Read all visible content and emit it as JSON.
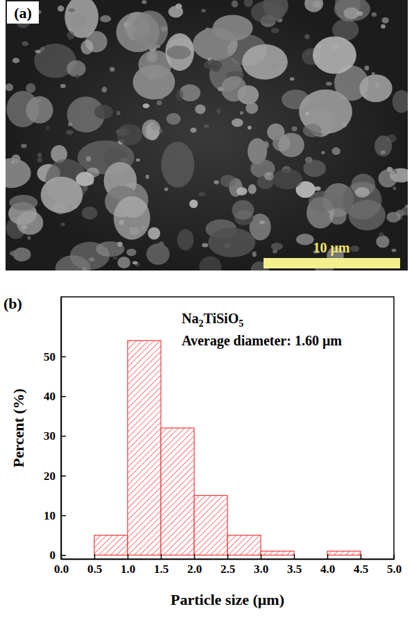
{
  "image_panel": {
    "label": "(a)",
    "scale_bar_label": "10 μm"
  },
  "chart_data": {
    "type": "histogram",
    "panel_label": "(b)",
    "x_label": "Particle size (μm)",
    "y_label": "Percent (%)",
    "annotations": [
      "Na2TiSiO5",
      "Average diameter: 1.60 μm"
    ],
    "bins": [
      0.5,
      1.0,
      1.5,
      2.0,
      2.5,
      3.0,
      3.5,
      4.0,
      4.5
    ],
    "values": [
      5,
      54,
      32,
      15,
      5,
      1,
      0,
      1
    ],
    "color": "#f03c3c",
    "xlim": [
      0,
      5
    ],
    "xticks": [
      {
        "value": 0,
        "label": "0.0"
      },
      0.5,
      {
        "value": 1,
        "label": "1.0"
      },
      1.5,
      {
        "value": 2,
        "label": "2.0"
      },
      2.5,
      {
        "value": 3,
        "label": "3.0"
      },
      3.5,
      {
        "value": 4,
        "label": "4.0"
      },
      4.5,
      {
        "value": 5,
        "label": "5.0"
      }
    ],
    "ylim": [
      -1,
      65
    ],
    "yticks": [
      0,
      10,
      20,
      30,
      40,
      50
    ],
    "grid": false
  }
}
